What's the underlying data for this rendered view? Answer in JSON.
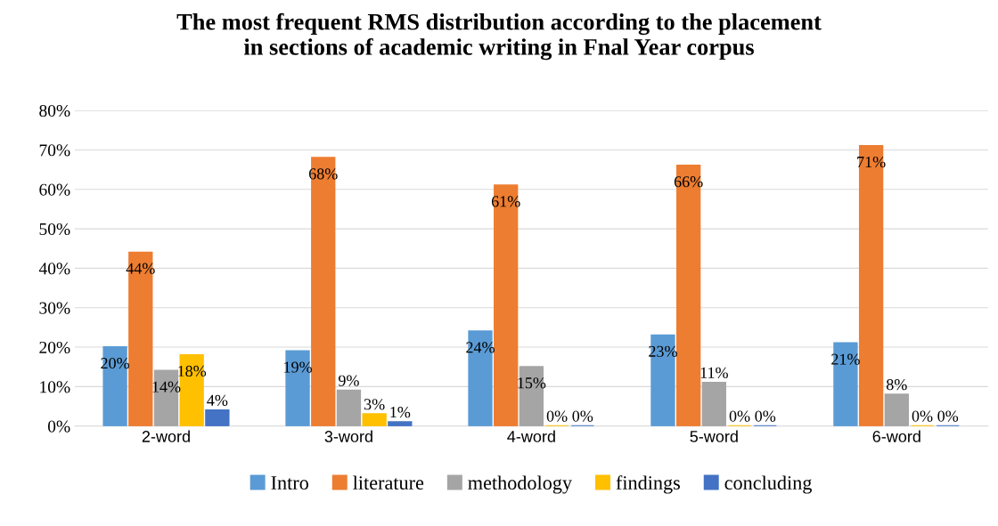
{
  "chart_data": {
    "type": "bar",
    "title": "The most frequent RMS distribution according to the placement\nin sections of academic writing in Fnal Year corpus",
    "categories": [
      "2-word",
      "3-word",
      "4-word",
      "5-word",
      "6-word"
    ],
    "series": [
      {
        "name": "Intro",
        "color": "#5b9bd5",
        "values": [
          20,
          19,
          24,
          23,
          21
        ],
        "value_labels": [
          "20%",
          "19%",
          "24%",
          "23%",
          "21%"
        ]
      },
      {
        "name": "literature",
        "color": "#ed7d31",
        "values": [
          44,
          68,
          61,
          66,
          71
        ],
        "value_labels": [
          "44%",
          "68%",
          "61%",
          "66%",
          "71%"
        ]
      },
      {
        "name": "methodology",
        "color": "#a5a5a5",
        "values": [
          14,
          9,
          15,
          11,
          8
        ],
        "value_labels": [
          "14%",
          "9%",
          "15%",
          "11%",
          "8%"
        ]
      },
      {
        "name": "findings",
        "color": "#ffc000",
        "values": [
          18,
          3,
          0,
          0,
          0
        ],
        "value_labels": [
          "18%",
          "3%",
          "0%",
          "0%",
          "0%"
        ]
      },
      {
        "name": "concluding",
        "color": "#4472c4",
        "values": [
          4,
          1,
          0,
          0,
          0
        ],
        "value_labels": [
          "4%",
          "1%",
          "0%",
          "0%",
          "0%"
        ]
      }
    ],
    "ylim": [
      0,
      80
    ],
    "yticks": [
      {
        "value": 0,
        "label": "0%"
      },
      {
        "value": 10,
        "label": "10%"
      },
      {
        "value": 20,
        "label": "20%"
      },
      {
        "value": 30,
        "label": "30%"
      },
      {
        "value": 40,
        "label": "40%"
      },
      {
        "value": 50,
        "label": "50%"
      },
      {
        "value": 60,
        "label": "60%"
      },
      {
        "value": 70,
        "label": "70%"
      },
      {
        "value": 80,
        "label": "80%"
      }
    ],
    "grid": "y",
    "legend": "bottom"
  }
}
